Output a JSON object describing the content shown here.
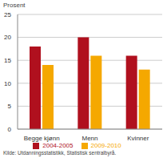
{
  "chart_data": {
    "type": "bar",
    "y_label": "Prosent",
    "categories": [
      "Begge kjønn",
      "Menn",
      "Kvinner"
    ],
    "series": [
      {
        "name": "2004-2005",
        "color": "#b0101e",
        "values": [
          18,
          20,
          16
        ]
      },
      {
        "name": "2009-2010",
        "color": "#f5a800",
        "values": [
          14,
          16,
          13
        ]
      }
    ],
    "ylim": [
      0,
      25
    ],
    "yticks": [
      0,
      5,
      10,
      15,
      20,
      25
    ],
    "grid": true,
    "legend": "bottom",
    "annotations": [
      "Kilde: Utdanningsstatistikk, Statistisk sentralbyrå."
    ]
  }
}
